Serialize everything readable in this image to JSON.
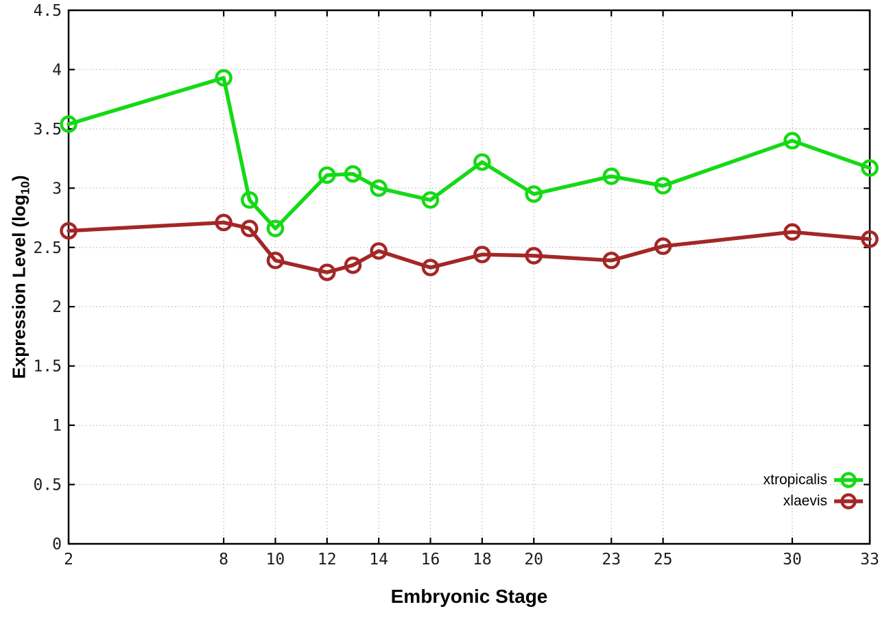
{
  "figure": {
    "xlabel": "Embryonic Stage",
    "ylabel_prefix": "Expression Level (log",
    "ylabel_sub": "10",
    "ylabel_suffix": ")"
  },
  "colors": {
    "xtropicalis": "#15d915",
    "xlaevis": "#a32726",
    "grid": "#b8b8b8",
    "axis": "#000000",
    "tick_text": "#1c1c1c"
  },
  "legend": [
    {
      "label": "xtropicalis",
      "color": "#15d915"
    },
    {
      "label": "xlaevis",
      "color": "#a32726"
    }
  ],
  "chart_data": {
    "type": "line",
    "title": "",
    "xlabel": "Embryonic Stage",
    "ylabel": "Expression Level (log10)",
    "x": [
      2,
      8,
      9,
      10,
      12,
      13,
      14,
      16,
      18,
      20,
      23,
      25,
      30,
      33
    ],
    "series": [
      {
        "name": "xtropicalis",
        "color": "#15d915",
        "values": [
          3.54,
          3.93,
          2.9,
          2.66,
          3.11,
          3.12,
          3.0,
          2.9,
          3.22,
          2.95,
          3.1,
          3.02,
          3.4,
          3.17
        ]
      },
      {
        "name": "xlaevis",
        "color": "#a32726",
        "values": [
          2.64,
          2.71,
          2.66,
          2.39,
          2.29,
          2.35,
          2.47,
          2.33,
          2.44,
          2.43,
          2.39,
          2.51,
          2.63,
          2.57
        ]
      }
    ],
    "xlim": [
      2,
      33
    ],
    "ylim": [
      0,
      4.5
    ],
    "x_ticks": [
      2,
      8,
      10,
      12,
      14,
      16,
      18,
      20,
      23,
      25,
      30,
      33
    ],
    "x_tick_labels": [
      "2",
      "8",
      "10",
      "12",
      "14",
      "16",
      "18",
      "20",
      "23",
      "25",
      "30",
      "33"
    ],
    "y_ticks": [
      0,
      0.5,
      1,
      1.5,
      2,
      2.5,
      3,
      3.5,
      4,
      4.5
    ],
    "y_tick_labels": [
      "0",
      "0.5",
      "1",
      "1.5",
      "2",
      "2.5",
      "3",
      "3.5",
      "4",
      "4.5"
    ],
    "grid": true,
    "legend_position": "bottom-right",
    "marker": "open-circle"
  }
}
